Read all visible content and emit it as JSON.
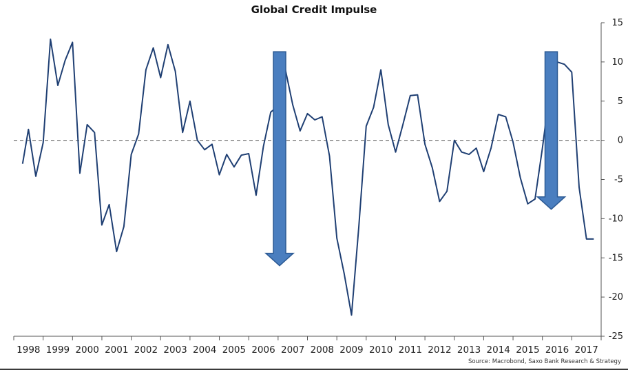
{
  "chart_data": {
    "type": "line",
    "title": "Global Credit Impulse",
    "source": "Source: Macrobond, Saxo Bank Research & Strategy",
    "x_labels": [
      "1998",
      "1999",
      "2000",
      "2001",
      "2002",
      "2003",
      "2004",
      "2005",
      "2006",
      "2007",
      "2008",
      "2009",
      "2010",
      "2011",
      "2012",
      "2013",
      "2014",
      "2015",
      "2016",
      "2017"
    ],
    "yticks": [
      15,
      10,
      5,
      0,
      -5,
      -10,
      -15,
      -20,
      -25
    ],
    "ylim": [
      -25,
      15
    ],
    "y_axis_position": "right",
    "grid": false,
    "zero_line": "dashed",
    "series": [
      {
        "color": "#1f3f73",
        "x": [
          1997.8,
          1998.0,
          1998.25,
          1998.5,
          1998.75,
          1999.0,
          1999.25,
          1999.5,
          1999.75,
          2000.0,
          2000.25,
          2000.5,
          2000.75,
          2001.0,
          2001.25,
          2001.5,
          2001.75,
          2002.0,
          2002.25,
          2002.5,
          2002.75,
          2003.0,
          2003.25,
          2003.5,
          2003.75,
          2004.0,
          2004.25,
          2004.5,
          2004.75,
          2005.0,
          2005.25,
          2005.5,
          2005.75,
          2006.0,
          2006.25,
          2006.5,
          2006.75,
          2007.0,
          2007.25,
          2007.5,
          2007.75,
          2008.0,
          2008.25,
          2008.5,
          2008.75,
          2009.0,
          2009.25,
          2009.5,
          2009.75,
          2010.0,
          2010.25,
          2010.5,
          2010.75,
          2011.0,
          2011.25,
          2011.5,
          2011.75,
          2012.0,
          2012.25,
          2012.5,
          2012.75,
          2013.0,
          2013.25,
          2013.5,
          2013.75,
          2014.0,
          2014.25,
          2014.5,
          2014.75,
          2015.0,
          2015.25,
          2015.5,
          2015.75,
          2016.0,
          2016.25,
          2016.5,
          2016.75,
          2017.0,
          2017.25
        ],
        "y": [
          -3.0,
          1.4,
          -4.6,
          -0.3,
          12.9,
          7.0,
          10.2,
          12.5,
          -4.2,
          2.0,
          1.0,
          -10.8,
          -8.2,
          -14.2,
          -11.0,
          -1.8,
          0.8,
          9.0,
          11.8,
          8.0,
          12.2,
          8.8,
          1.0,
          5.0,
          0.0,
          -1.2,
          -0.5,
          -4.4,
          -1.8,
          -3.4,
          -1.9,
          -1.7,
          -7.0,
          -0.8,
          3.6,
          4.4,
          9.0,
          4.5,
          1.2,
          3.4,
          2.6,
          3.0,
          -2.0,
          -12.5,
          -17.0,
          -22.3,
          -11.0,
          1.8,
          4.2,
          9.0,
          2.0,
          -1.5,
          2.0,
          5.7,
          5.8,
          -0.5,
          -3.5,
          -7.8,
          -6.5,
          0.0,
          -1.5,
          -1.8,
          -1.0,
          -4.0,
          -1.0,
          3.3,
          3.0,
          -0.2,
          -4.8,
          -8.1,
          -7.5,
          -1.0,
          6.3,
          10.0,
          9.7,
          8.7,
          -6.0,
          -12.6,
          -12.6
        ]
      }
    ],
    "annotations": [
      {
        "type": "down-arrow",
        "color": "#4a7ebf",
        "x": 2006.55,
        "y_from": 11.3,
        "y_to": -16.0
      },
      {
        "type": "down-arrow",
        "color": "#4a7ebf",
        "x": 2015.8,
        "y_from": 11.3,
        "y_to": -8.8
      }
    ]
  }
}
